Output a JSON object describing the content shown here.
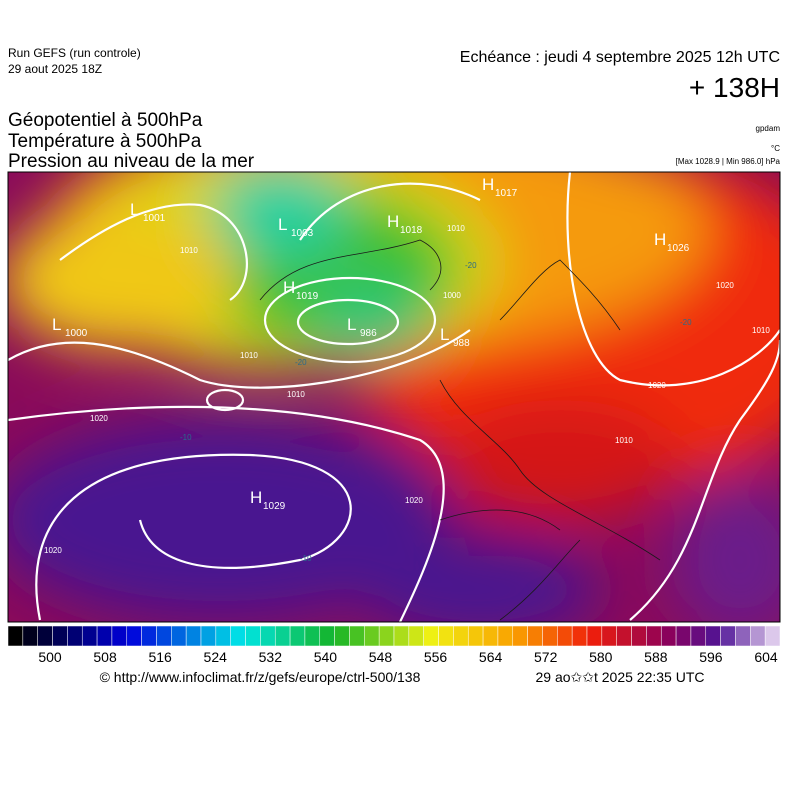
{
  "header": {
    "run": "Run GEFS (run controle)",
    "run_date": "29 aout 2025 18Z",
    "echeance": "Echéance : jeudi 4 septembre 2025 12h UTC",
    "lead": "+ 138H",
    "fields": [
      "Géopotentiel à 500hPa",
      "Température à 500hPa",
      "Pression au niveau de la mer"
    ],
    "units": [
      "gpdam",
      "°C",
      "[Max 1028.9 | Min 986.0] hPa"
    ]
  },
  "map": {
    "centers": [
      {
        "letter": "H",
        "value": "1017"
      },
      {
        "letter": "L",
        "value": "1001"
      },
      {
        "letter": "L",
        "value": "1003"
      },
      {
        "letter": "H",
        "value": "1018"
      },
      {
        "letter": "H",
        "value": "1026"
      },
      {
        "letter": "H",
        "value": "1019"
      },
      {
        "letter": "L",
        "value": "986"
      },
      {
        "letter": "L",
        "value": "988"
      },
      {
        "letter": "L",
        "value": "1000"
      },
      {
        "letter": "H",
        "value": "1029"
      }
    ],
    "isobar_labels": [
      "1010",
      "1010",
      "1000",
      "1020",
      "1010",
      "1010",
      "1020",
      "1020",
      "1010",
      "1020",
      "1020",
      "1010"
    ],
    "temperature_labels": [
      "-20",
      "-20",
      "-20",
      "-10",
      "-10"
    ]
  },
  "colorbar": {
    "ticks": [
      "500",
      "508",
      "516",
      "524",
      "532",
      "540",
      "548",
      "556",
      "564",
      "572",
      "580",
      "588",
      "596",
      "604"
    ]
  },
  "footer": {
    "url": "© http://www.infoclimat.fr/z/gefs/europe/ctrl-500/138",
    "stamp": "29 ao✩✩t 2025 22:35 UTC"
  }
}
